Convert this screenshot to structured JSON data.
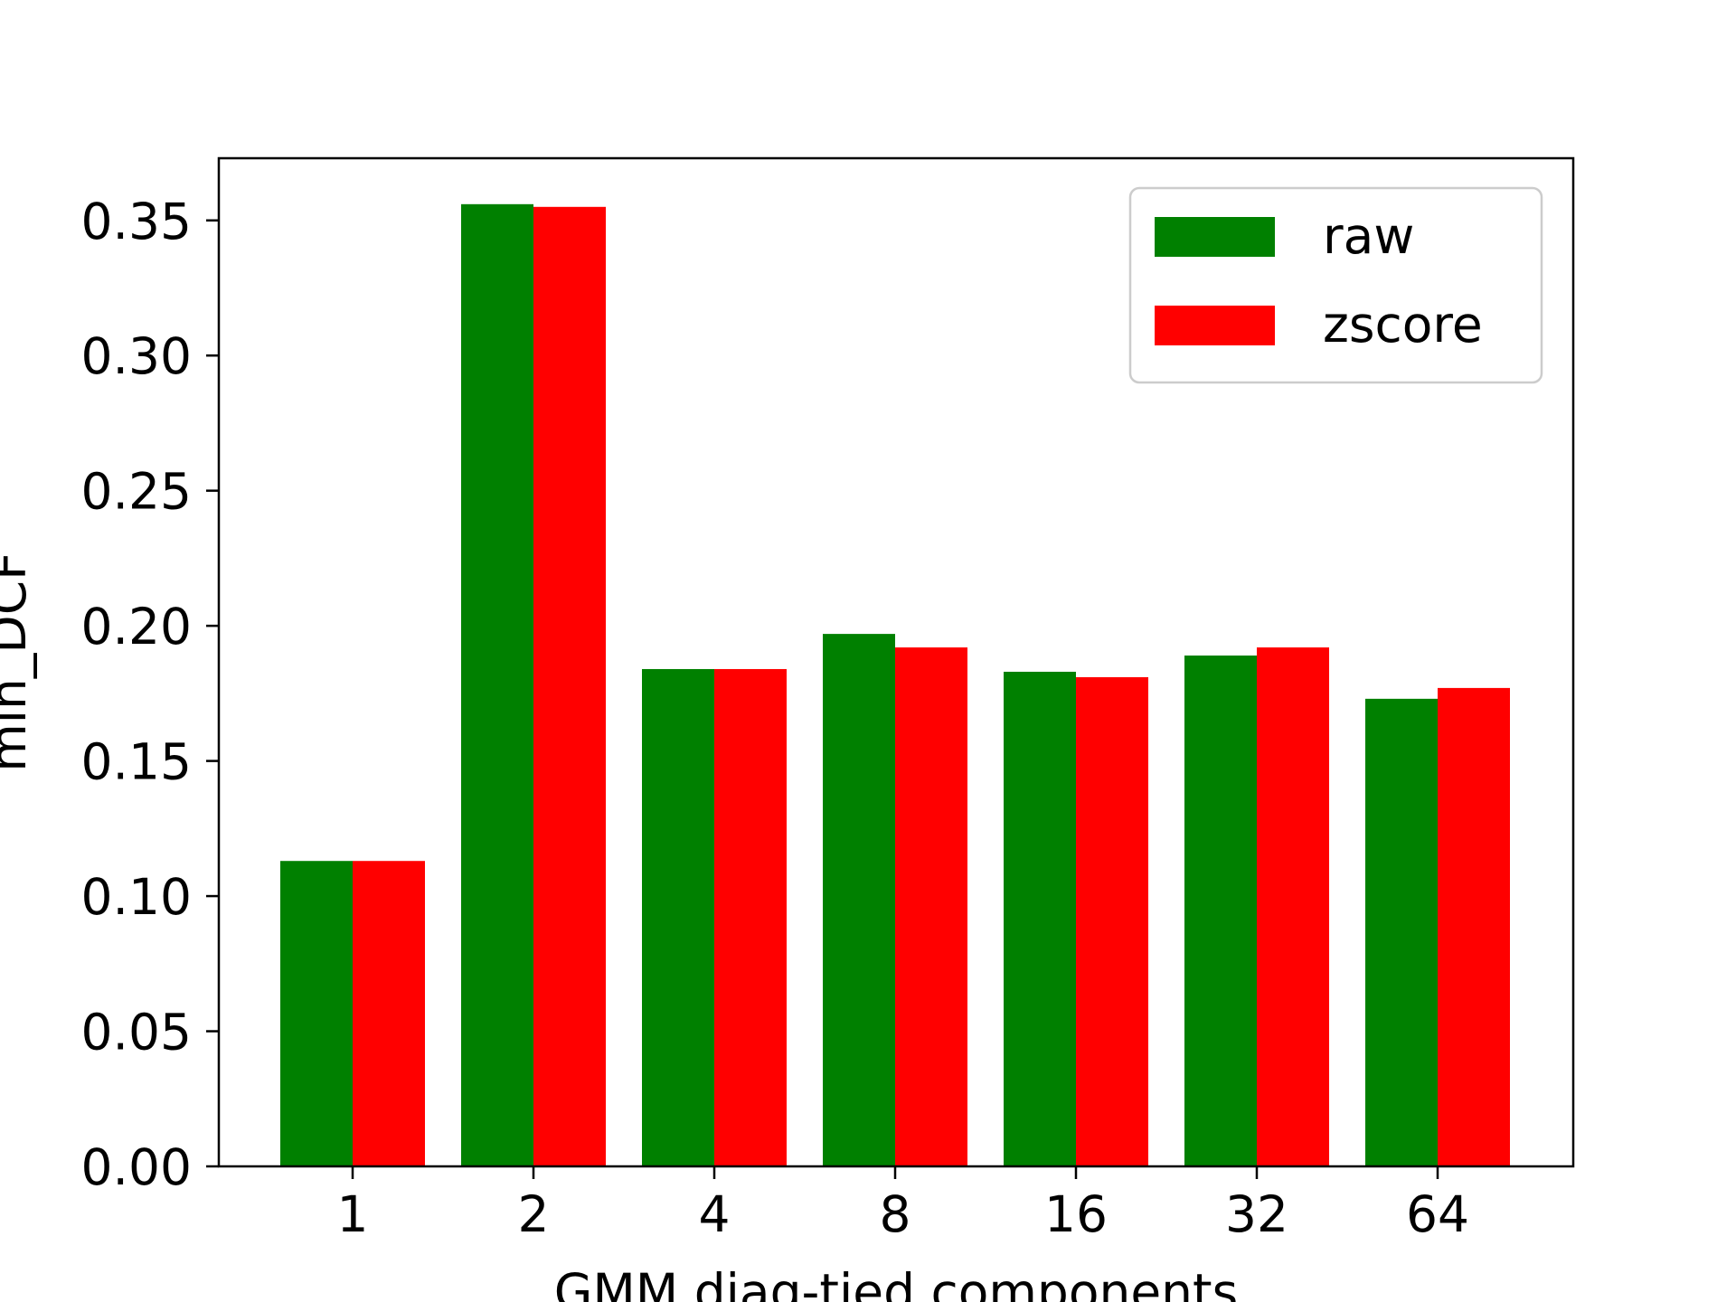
{
  "chart_data": {
    "type": "bar",
    "categories": [
      "1",
      "2",
      "4",
      "8",
      "16",
      "32",
      "64"
    ],
    "series": [
      {
        "name": "raw",
        "color": "#008000",
        "values": [
          0.113,
          0.356,
          0.184,
          0.197,
          0.183,
          0.189,
          0.173
        ]
      },
      {
        "name": "zscore",
        "color": "#ff0000",
        "values": [
          0.113,
          0.355,
          0.184,
          0.192,
          0.181,
          0.192,
          0.177
        ]
      }
    ],
    "title": "",
    "xlabel": "GMM diag-tied components",
    "ylabel": "min_DCF",
    "ylim": [
      0,
      0.373
    ],
    "yticks": [
      "0.00",
      "0.05",
      "0.10",
      "0.15",
      "0.20",
      "0.25",
      "0.30",
      "0.35"
    ],
    "grid": false,
    "legend": "top-right"
  }
}
